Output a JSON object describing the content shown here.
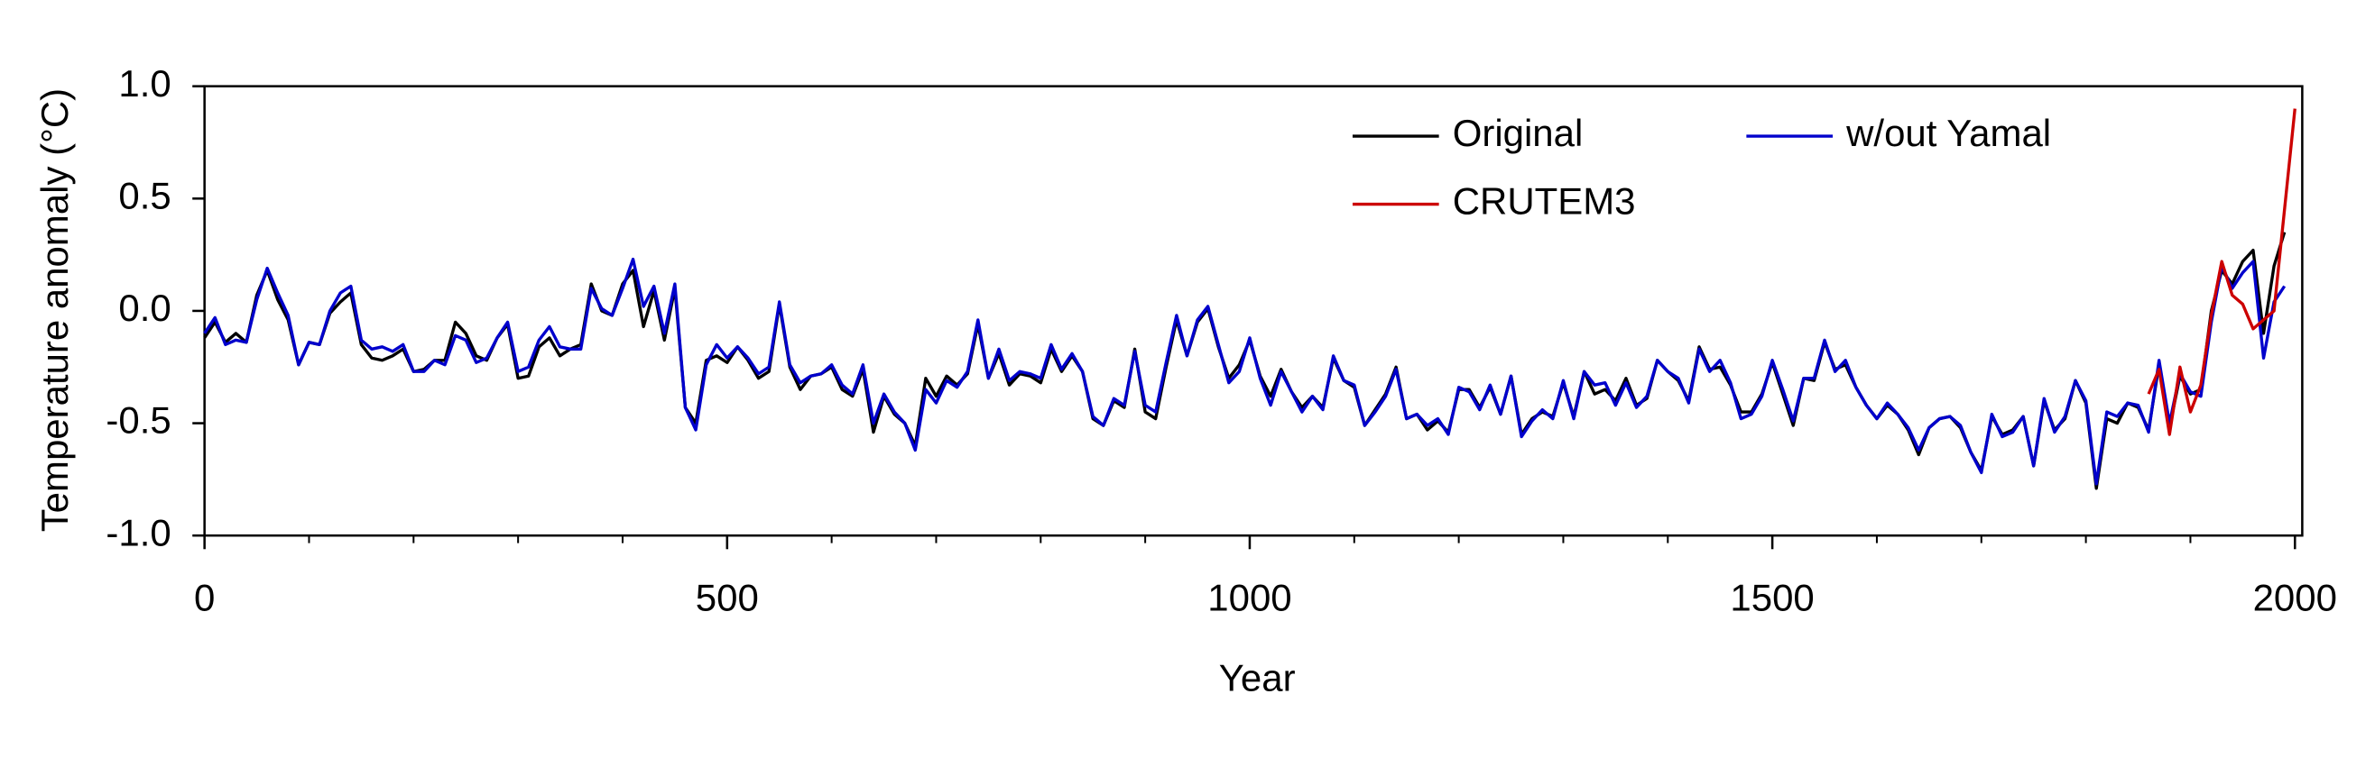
{
  "chart_data": {
    "type": "line",
    "xlabel": "Year",
    "ylabel": "Temperature anomaly (°C)",
    "xlim": [
      0,
      2007
    ],
    "ylim": [
      -1,
      1
    ],
    "xticks": [
      0,
      500,
      1000,
      1500,
      2000
    ],
    "xminorticks": [
      100,
      200,
      300,
      400,
      600,
      700,
      800,
      900,
      1100,
      1200,
      1300,
      1400,
      1600,
      1700,
      1800,
      1900
    ],
    "yticks": [
      {
        "value": -1,
        "label": "-1.0"
      },
      -0.5,
      {
        "value": 0,
        "label": "0.0"
      },
      0.5,
      {
        "value": 1,
        "label": "1.0"
      }
    ],
    "legend": "upper right",
    "x": [
      0,
      10,
      20,
      30,
      40,
      50,
      60,
      70,
      80,
      90,
      100,
      110,
      120,
      130,
      140,
      150,
      160,
      170,
      180,
      190,
      200,
      210,
      220,
      230,
      240,
      250,
      260,
      270,
      280,
      290,
      300,
      310,
      320,
      330,
      340,
      350,
      360,
      370,
      380,
      390,
      400,
      410,
      420,
      430,
      440,
      450,
      460,
      470,
      480,
      490,
      500,
      510,
      520,
      530,
      540,
      550,
      560,
      570,
      580,
      590,
      600,
      610,
      620,
      630,
      640,
      650,
      660,
      670,
      680,
      690,
      700,
      710,
      720,
      730,
      740,
      750,
      760,
      770,
      780,
      790,
      800,
      810,
      820,
      830,
      840,
      850,
      860,
      870,
      880,
      890,
      900,
      910,
      920,
      930,
      940,
      950,
      960,
      970,
      980,
      990,
      1000,
      1010,
      1020,
      1030,
      1040,
      1050,
      1060,
      1070,
      1080,
      1090,
      1100,
      1110,
      1120,
      1130,
      1140,
      1150,
      1160,
      1170,
      1180,
      1190,
      1200,
      1210,
      1220,
      1230,
      1240,
      1250,
      1260,
      1270,
      1280,
      1290,
      1300,
      1310,
      1320,
      1330,
      1340,
      1350,
      1360,
      1370,
      1380,
      1390,
      1400,
      1410,
      1420,
      1430,
      1440,
      1450,
      1460,
      1470,
      1480,
      1490,
      1500,
      1510,
      1520,
      1530,
      1540,
      1550,
      1560,
      1570,
      1580,
      1590,
      1600,
      1610,
      1620,
      1630,
      1640,
      1650,
      1660,
      1670,
      1680,
      1690,
      1700,
      1710,
      1720,
      1730,
      1740,
      1750,
      1760,
      1770,
      1780,
      1790,
      1800,
      1810,
      1820,
      1830,
      1840,
      1850,
      1860,
      1870,
      1880,
      1890,
      1900,
      1910,
      1920,
      1930,
      1940,
      1950,
      1960,
      1970,
      1980,
      1990
    ],
    "series": [
      {
        "name": "Original",
        "color": "#000000",
        "values": [
          -0.12,
          -0.05,
          -0.14,
          -0.1,
          -0.14,
          0.07,
          0.18,
          0.05,
          -0.04,
          -0.24,
          -0.14,
          -0.15,
          -0.01,
          0.04,
          0.08,
          -0.15,
          -0.21,
          -0.22,
          -0.2,
          -0.17,
          -0.27,
          -0.26,
          -0.22,
          -0.22,
          -0.05,
          -0.1,
          -0.2,
          -0.22,
          -0.12,
          -0.06,
          -0.3,
          -0.29,
          -0.16,
          -0.12,
          -0.2,
          -0.17,
          -0.15,
          0.12,
          0.0,
          -0.02,
          0.12,
          0.18,
          -0.07,
          0.09,
          -0.13,
          0.1,
          -0.43,
          -0.5,
          -0.22,
          -0.2,
          -0.23,
          -0.16,
          -0.22,
          -0.3,
          -0.27,
          0.03,
          -0.25,
          -0.35,
          -0.29,
          -0.28,
          -0.25,
          -0.35,
          -0.38,
          -0.26,
          -0.54,
          -0.38,
          -0.46,
          -0.5,
          -0.6,
          -0.3,
          -0.38,
          -0.29,
          -0.33,
          -0.28,
          -0.06,
          -0.3,
          -0.19,
          -0.33,
          -0.28,
          -0.29,
          -0.32,
          -0.17,
          -0.27,
          -0.2,
          -0.27,
          -0.48,
          -0.51,
          -0.4,
          -0.43,
          -0.17,
          -0.45,
          -0.48,
          -0.25,
          -0.04,
          -0.2,
          -0.05,
          0.01,
          -0.16,
          -0.3,
          -0.24,
          -0.13,
          -0.29,
          -0.38,
          -0.26,
          -0.36,
          -0.43,
          -0.38,
          -0.43,
          -0.21,
          -0.31,
          -0.34,
          -0.51,
          -0.44,
          -0.37,
          -0.25,
          -0.48,
          -0.46,
          -0.53,
          -0.49,
          -0.54,
          -0.35,
          -0.35,
          -0.43,
          -0.34,
          -0.46,
          -0.29,
          -0.55,
          -0.48,
          -0.45,
          -0.47,
          -0.32,
          -0.47,
          -0.27,
          -0.37,
          -0.35,
          -0.4,
          -0.3,
          -0.42,
          -0.39,
          -0.22,
          -0.27,
          -0.31,
          -0.4,
          -0.16,
          -0.26,
          -0.25,
          -0.33,
          -0.45,
          -0.45,
          -0.37,
          -0.23,
          -0.37,
          -0.51,
          -0.3,
          -0.31,
          -0.14,
          -0.26,
          -0.24,
          -0.34,
          -0.42,
          -0.48,
          -0.42,
          -0.46,
          -0.53,
          -0.64,
          -0.52,
          -0.48,
          -0.47,
          -0.52,
          -0.63,
          -0.71,
          -0.47,
          -0.55,
          -0.53,
          -0.47,
          -0.69,
          -0.4,
          -0.53,
          -0.48,
          -0.31,
          -0.41,
          -0.79,
          -0.48,
          -0.5,
          -0.41,
          -0.43,
          -0.53,
          -0.24,
          -0.52,
          -0.29,
          -0.37,
          -0.35,
          0.0,
          0.18,
          0.12,
          0.22,
          0.27,
          -0.1,
          0.2,
          0.35
        ]
      },
      {
        "name": "w/out Yamal",
        "color": "#0000cc",
        "values": [
          -0.1,
          -0.03,
          -0.15,
          -0.13,
          -0.14,
          0.05,
          0.19,
          0.08,
          -0.02,
          -0.24,
          -0.14,
          -0.15,
          0.0,
          0.08,
          0.11,
          -0.13,
          -0.17,
          -0.16,
          -0.18,
          -0.15,
          -0.27,
          -0.27,
          -0.22,
          -0.24,
          -0.11,
          -0.13,
          -0.23,
          -0.21,
          -0.12,
          -0.05,
          -0.27,
          -0.25,
          -0.13,
          -0.07,
          -0.16,
          -0.17,
          -0.17,
          0.1,
          0.01,
          -0.02,
          0.1,
          0.23,
          0.02,
          0.11,
          -0.1,
          0.12,
          -0.43,
          -0.53,
          -0.24,
          -0.15,
          -0.21,
          -0.16,
          -0.21,
          -0.28,
          -0.25,
          0.04,
          -0.24,
          -0.32,
          -0.29,
          -0.28,
          -0.24,
          -0.33,
          -0.37,
          -0.24,
          -0.5,
          -0.37,
          -0.45,
          -0.5,
          -0.62,
          -0.35,
          -0.41,
          -0.31,
          -0.34,
          -0.27,
          -0.04,
          -0.3,
          -0.17,
          -0.31,
          -0.27,
          -0.28,
          -0.3,
          -0.15,
          -0.26,
          -0.19,
          -0.27,
          -0.47,
          -0.51,
          -0.39,
          -0.42,
          -0.18,
          -0.42,
          -0.45,
          -0.23,
          -0.02,
          -0.2,
          -0.04,
          0.02,
          -0.15,
          -0.32,
          -0.27,
          -0.12,
          -0.3,
          -0.42,
          -0.27,
          -0.36,
          -0.45,
          -0.38,
          -0.44,
          -0.2,
          -0.31,
          -0.33,
          -0.51,
          -0.45,
          -0.38,
          -0.26,
          -0.48,
          -0.46,
          -0.51,
          -0.48,
          -0.55,
          -0.34,
          -0.36,
          -0.44,
          -0.33,
          -0.46,
          -0.29,
          -0.56,
          -0.49,
          -0.44,
          -0.48,
          -0.31,
          -0.48,
          -0.27,
          -0.33,
          -0.32,
          -0.42,
          -0.32,
          -0.43,
          -0.38,
          -0.22,
          -0.27,
          -0.3,
          -0.41,
          -0.17,
          -0.27,
          -0.22,
          -0.32,
          -0.48,
          -0.46,
          -0.38,
          -0.22,
          -0.35,
          -0.49,
          -0.3,
          -0.3,
          -0.13,
          -0.27,
          -0.22,
          -0.34,
          -0.42,
          -0.48,
          -0.41,
          -0.46,
          -0.52,
          -0.62,
          -0.52,
          -0.48,
          -0.47,
          -0.51,
          -0.63,
          -0.72,
          -0.46,
          -0.56,
          -0.54,
          -0.47,
          -0.69,
          -0.39,
          -0.54,
          -0.47,
          -0.31,
          -0.4,
          -0.77,
          -0.45,
          -0.47,
          -0.41,
          -0.42,
          -0.54,
          -0.22,
          -0.5,
          -0.28,
          -0.36,
          -0.38,
          -0.05,
          0.2,
          0.1,
          0.17,
          0.22,
          -0.21,
          0.04,
          0.11
        ]
      },
      {
        "name": "CRUTEM3",
        "color": "#cc0000",
        "x": [
          1860,
          1870,
          1880,
          1890,
          1900,
          1910,
          1920,
          1930,
          1940,
          1950,
          1960,
          1970,
          1980,
          1990,
          2000
        ],
        "values": [
          -0.37,
          -0.26,
          -0.55,
          -0.25,
          -0.45,
          -0.33,
          -0.02,
          0.22,
          0.07,
          0.03,
          -0.08,
          -0.04,
          0.0,
          0.45,
          0.9
        ]
      }
    ]
  }
}
